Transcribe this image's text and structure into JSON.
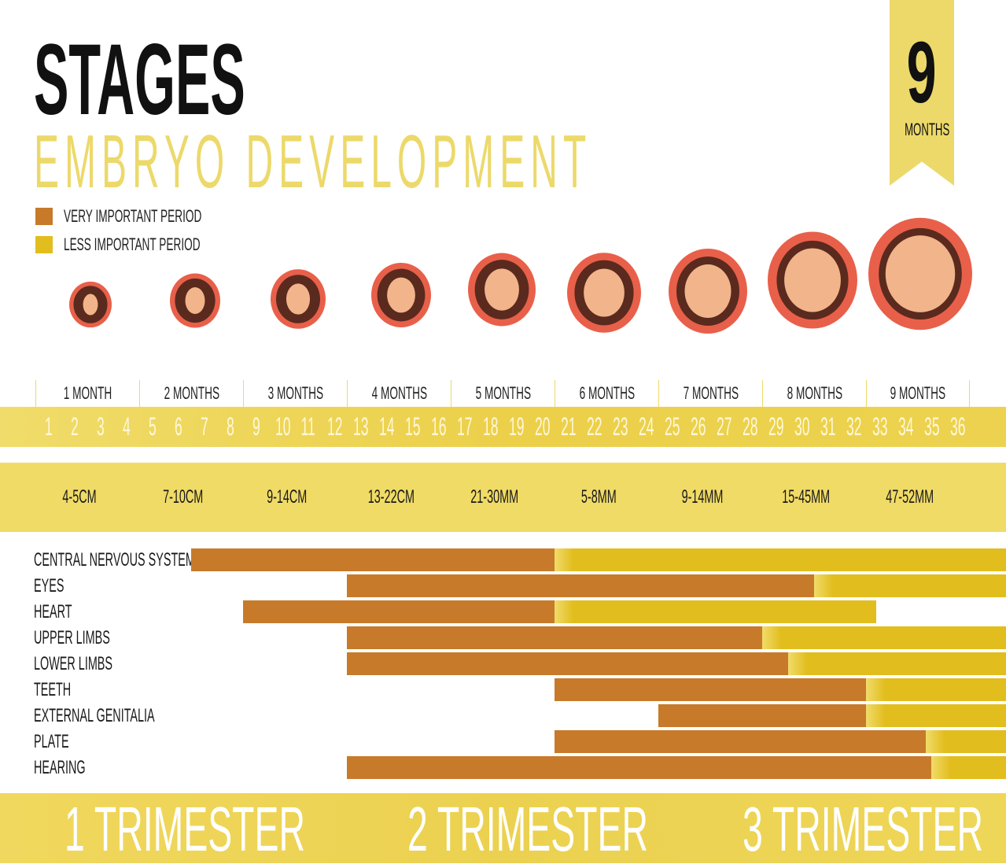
{
  "title": "STAGES",
  "subtitle": "EMBRYO DEVELOPMENT",
  "ribbon": {
    "number": "9",
    "unit": "MONTHS"
  },
  "colors": {
    "very_important": "#c77a2a",
    "less_important": "#e2bd1e",
    "accent": "#ecd96a"
  },
  "legend": [
    {
      "label": "VERY IMPORTANT PERIOD",
      "color": "#c77a2a"
    },
    {
      "label": "LESS IMPORTANT PERIOD",
      "color": "#e2bd1e"
    }
  ],
  "months": [
    "1 MONTH",
    "2 MONTHS",
    "3 MONTHS",
    "4 MONTHS",
    "5 MONTHS",
    "6 MONTHS",
    "7 MONTHS",
    "8 MONTHS",
    "9 MONTHS"
  ],
  "weeks": [
    "1",
    "2",
    "3",
    "4",
    "5",
    "6",
    "7",
    "8",
    "9",
    "10",
    "11",
    "12",
    "13",
    "14",
    "15",
    "16",
    "17",
    "18",
    "19",
    "20",
    "21",
    "22",
    "23",
    "24",
    "25",
    "26",
    "27",
    "28",
    "29",
    "30",
    "31",
    "32",
    "33",
    "34",
    "35",
    "36"
  ],
  "sizes": [
    "4-5CM",
    "7-10CM",
    "9-14CM",
    "13-22CM",
    "21-30MM",
    "5-8MM",
    "9-14MM",
    "15-45MM",
    "47-52MM"
  ],
  "trimesters": [
    "1 TRIMESTER",
    "2 TRIMESTER",
    "3 TRIMESTER"
  ],
  "chart_data": {
    "type": "bar",
    "subtype": "gantt",
    "x_unit": "week",
    "xlim": [
      0,
      36
    ],
    "categories": [
      "CENTRAL  NERVOUS SYSTEM",
      "EYES",
      "HEART",
      "UPPER LIMBS",
      "LOWER LIMBS",
      "TEETH",
      "EXTERNAL GENITALIA",
      "PLATE",
      "HEARING"
    ],
    "series": [
      {
        "name": "VERY IMPORTANT PERIOD",
        "ranges": [
          [
            6,
            20
          ],
          [
            12,
            30
          ],
          [
            8,
            20
          ],
          [
            12,
            28
          ],
          [
            12,
            29
          ],
          [
            20,
            32
          ],
          [
            24,
            32
          ],
          [
            20,
            34.3
          ],
          [
            12,
            34.5
          ]
        ]
      },
      {
        "name": "LESS IMPORTANT PERIOD",
        "ranges": [
          [
            20,
            36
          ],
          [
            30,
            36
          ],
          [
            20,
            32.4
          ],
          [
            28,
            36
          ],
          [
            29,
            36
          ],
          [
            32,
            36
          ],
          [
            32,
            36
          ],
          [
            34.3,
            36
          ],
          [
            34.5,
            36
          ]
        ]
      }
    ]
  }
}
